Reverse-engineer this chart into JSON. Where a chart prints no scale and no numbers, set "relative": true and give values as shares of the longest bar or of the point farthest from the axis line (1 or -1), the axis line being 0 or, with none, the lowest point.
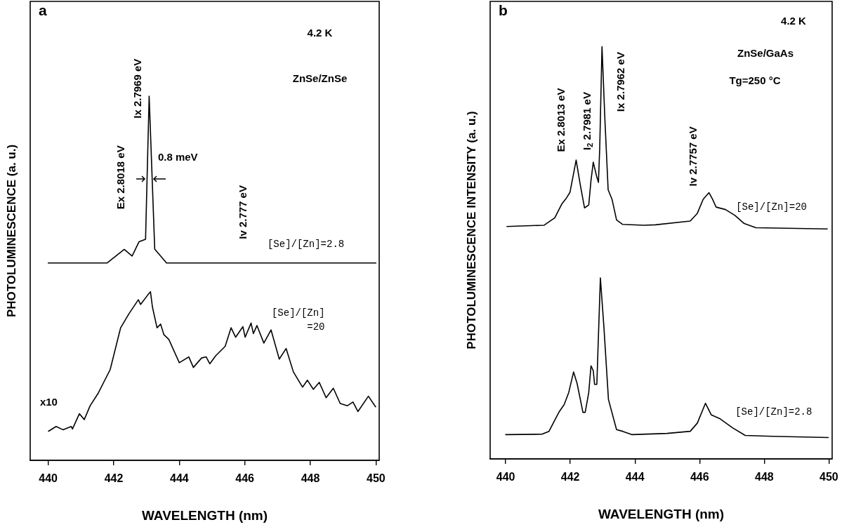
{
  "chart_data": [
    {
      "type": "line",
      "title": "a",
      "xlabel": "WAVELENGTH (nm)",
      "ylabel": "PHOTOLUMINESCENCE (a. u.)",
      "relative": true,
      "xlim": [
        439.45,
        450.1
      ],
      "xticks": [
        440,
        442,
        444,
        446,
        448,
        450
      ],
      "grid": false,
      "legend": false,
      "marker": "none",
      "line_style": "solid",
      "annotations": [
        "4.2 K",
        "ZnSe/ZnSe",
        "0.8 meV",
        "x10",
        "Ex 2.8018 eV",
        "Ix 2.7969 eV",
        "Iv 2.777 eV"
      ],
      "series": [
        {
          "name": "[Se]/[Zn]=2.8",
          "color": "#000000",
          "x": [
            440.0,
            441.8,
            442.32,
            442.56,
            442.77,
            442.97,
            443.08,
            443.25,
            443.61,
            450.0
          ],
          "values": [
            0.542,
            0.542,
            0.579,
            0.561,
            0.6,
            0.607,
            1,
            0.58,
            0.542,
            0.542
          ]
        },
        {
          "name": "[Se]/[Zn] =20",
          "color": "#000000",
          "x": [
            440.01,
            440.24,
            440.45,
            440.7,
            440.74,
            440.95,
            441.1,
            441.28,
            441.53,
            441.89,
            442.21,
            442.46,
            442.75,
            442.82,
            443.03,
            443.12,
            443.18,
            443.32,
            443.43,
            443.53,
            443.68,
            444.0,
            444.29,
            444.43,
            444.68,
            444.82,
            444.93,
            445.11,
            445.4,
            445.58,
            445.72,
            445.94,
            446.01,
            446.19,
            446.26,
            446.37,
            446.58,
            446.8,
            447.05,
            447.26,
            447.48,
            447.76,
            447.91,
            448.09,
            448.27,
            448.48,
            448.7,
            448.91,
            449.13,
            449.3,
            449.45,
            449.77,
            449.99
          ],
          "values": [
            0.08,
            0.093,
            0.084,
            0.093,
            0.086,
            0.128,
            0.112,
            0.15,
            0.185,
            0.249,
            0.364,
            0.402,
            0.441,
            0.428,
            0.453,
            0.463,
            0.421,
            0.364,
            0.374,
            0.345,
            0.332,
            0.268,
            0.284,
            0.255,
            0.281,
            0.284,
            0.265,
            0.287,
            0.313,
            0.364,
            0.338,
            0.367,
            0.338,
            0.377,
            0.348,
            0.37,
            0.322,
            0.358,
            0.278,
            0.307,
            0.243,
            0.201,
            0.22,
            0.195,
            0.214,
            0.172,
            0.198,
            0.156,
            0.15,
            0.16,
            0.134,
            0.176,
            0.147
          ]
        }
      ]
    },
    {
      "type": "line",
      "title": "b",
      "xlabel": "WAVELENGTH (nm)",
      "ylabel": "PHOTOLUMINESCENCE INTENSITY (a. u.)",
      "relative": true,
      "xlim": [
        439.52,
        450.1
      ],
      "xticks": [
        440,
        442,
        444,
        446,
        448,
        450
      ],
      "grid": false,
      "legend": false,
      "marker": "none",
      "line_style": "solid",
      "annotations": [
        "4.2 K",
        "ZnSe/GaAs",
        "Tg=250 °C",
        "Ex 2.8013 eV",
        "I$_{2}$ 2.7981 eV",
        "Ix 2.7962 eV",
        "Iv 2.7757 eV"
      ],
      "series": [
        {
          "name": "[Se]/[Zn]=20",
          "color": "#000000",
          "x": [
            440.04,
            441.19,
            441.52,
            441.74,
            441.88,
            441.99,
            442.18,
            442.31,
            442.44,
            442.57,
            442.64,
            442.71,
            442.81,
            442.87,
            442.91,
            442.98,
            443.07,
            443.17,
            443.29,
            443.43,
            443.62,
            444.27,
            444.63,
            445.71,
            445.93,
            446.11,
            446.29,
            446.4,
            446.51,
            446.8,
            447.09,
            447.38,
            447.74,
            449.95
          ],
          "values": [
            0.564,
            0.567,
            0.585,
            0.619,
            0.633,
            0.647,
            0.725,
            0.664,
            0.609,
            0.616,
            0.676,
            0.72,
            0.687,
            0.671,
            0.755,
            1,
            0.823,
            0.653,
            0.63,
            0.58,
            0.569,
            0.567,
            0.568,
            0.577,
            0.596,
            0.63,
            0.646,
            0.63,
            0.611,
            0.605,
            0.591,
            0.571,
            0.561,
            0.558
          ]
        },
        {
          "name": "[Se]/[Zn]=2.8",
          "color": "#000000",
          "x": [
            440.0,
            441.12,
            441.34,
            441.66,
            441.81,
            441.95,
            442.1,
            442.21,
            442.39,
            442.46,
            442.57,
            442.64,
            442.71,
            442.75,
            442.82,
            442.93,
            443.04,
            443.18,
            443.43,
            443.62,
            443.9,
            444.99,
            445.71,
            445.93,
            446.18,
            446.36,
            446.62,
            447.01,
            447.41,
            448.24,
            449.98
          ],
          "values": [
            0.059,
            0.06,
            0.067,
            0.115,
            0.132,
            0.161,
            0.211,
            0.183,
            0.113,
            0.113,
            0.161,
            0.226,
            0.214,
            0.181,
            0.181,
            0.439,
            0.319,
            0.144,
            0.071,
            0.067,
            0.059,
            0.062,
            0.067,
            0.087,
            0.135,
            0.107,
            0.098,
            0.076,
            0.057,
            0.055,
            0.052
          ]
        }
      ]
    }
  ]
}
